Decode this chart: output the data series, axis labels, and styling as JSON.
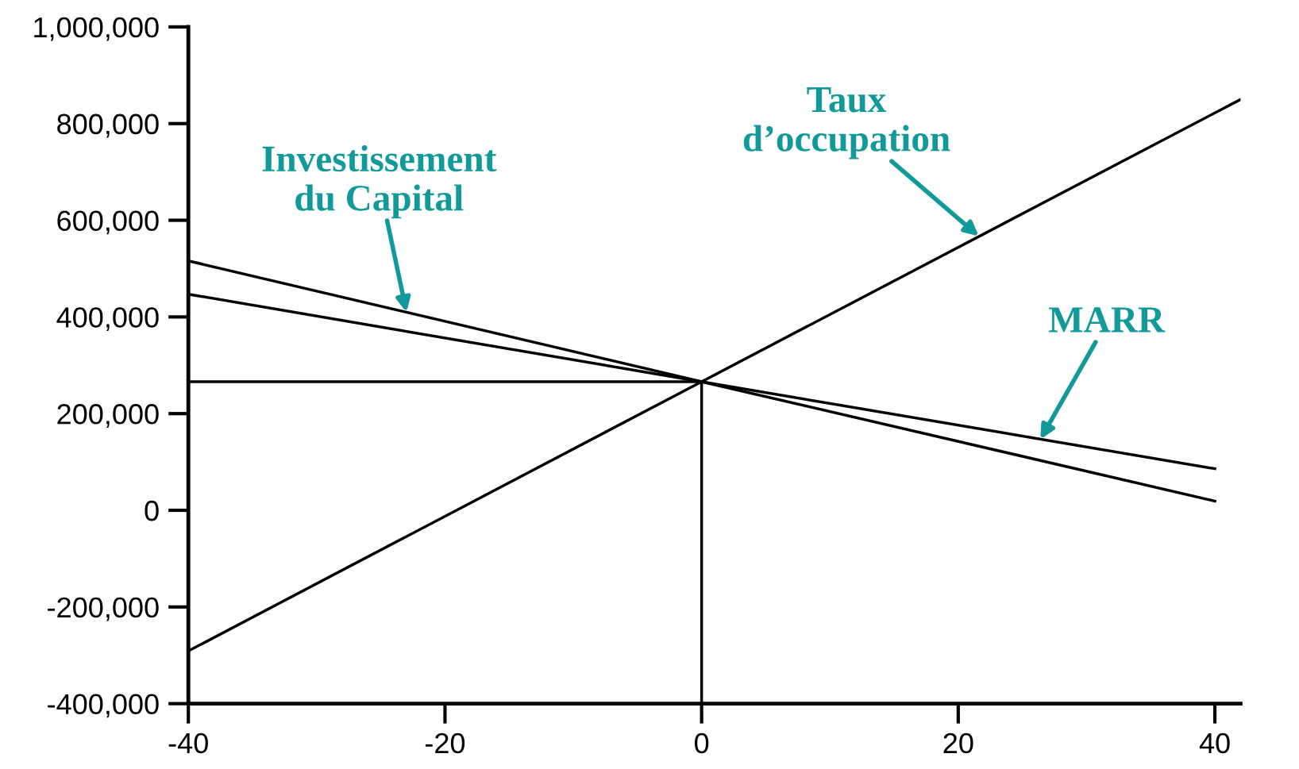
{
  "chart_data": {
    "type": "line",
    "series": [
      {
        "x": [
          -40,
          0,
          42
        ],
        "values": [
          -291000,
          266000,
          850000
        ],
        "color": "#000000"
      },
      {
        "x": [
          -40,
          0,
          40
        ],
        "values": [
          516000,
          266000,
          19000
        ],
        "color": "#000000"
      },
      {
        "x": [
          -40,
          0,
          40
        ],
        "values": [
          447000,
          266000,
          86000
        ],
        "color": "#000000"
      },
      {
        "x": [
          -40,
          0,
          0
        ],
        "values": [
          266000,
          266000,
          -400000
        ],
        "color": "#000000"
      }
    ],
    "xlim": [
      -40,
      42
    ],
    "ylim": [
      -400000,
      1000000
    ],
    "xticks": [
      {
        "value": -40,
        "label": "-40"
      },
      {
        "value": -20,
        "label": "-20"
      },
      0,
      20,
      40
    ],
    "yticks": [
      {
        "value": -400000,
        "label": "-400,000"
      },
      {
        "value": -200000,
        "label": "-200,000"
      },
      0,
      {
        "value": 200000,
        "label": "200,000"
      },
      {
        "value": 400000,
        "label": "400,000"
      },
      {
        "value": 600000,
        "label": "600,000"
      },
      {
        "value": 800000,
        "label": "800,000"
      },
      {
        "value": 1000000,
        "label": "1,000,000"
      }
    ],
    "annotations": [
      {
        "text": "Investissement\ndu Capital",
        "x": -23,
        "y": 410000
      },
      {
        "text": "Taux\nd’occupation",
        "x": 21.6,
        "y": 567000
      },
      {
        "text": "MARR",
        "x": 26.4,
        "y": 147000
      }
    ],
    "grid": false,
    "legend": false,
    "marker": "none",
    "line_style": "solid"
  }
}
